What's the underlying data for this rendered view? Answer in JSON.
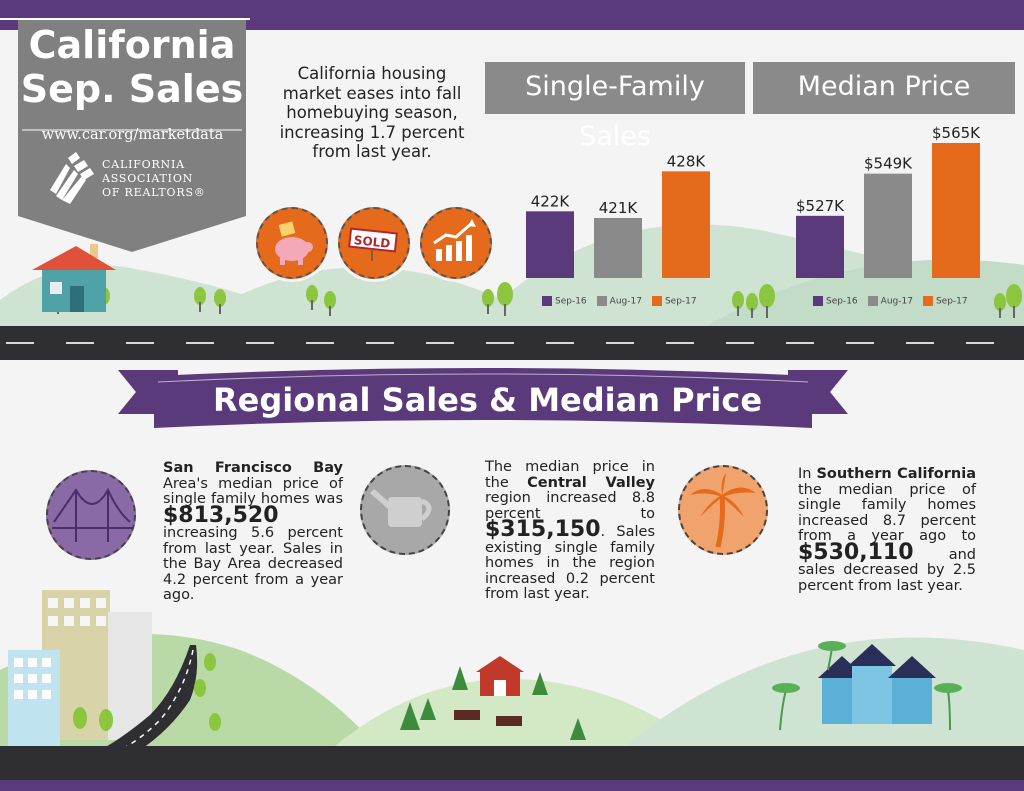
{
  "header": {
    "title_line1": "California",
    "title_line2": "Sep. Sales",
    "url": "www.car.org/marketdata",
    "org_line1": "CALIFORNIA",
    "org_line2": "ASSOCIATION",
    "org_line3": "OF REALTORS®"
  },
  "intro_text": "California housing market eases into fall homebuying season, increasing 1.7 percent from last year.",
  "icons": [
    "piggy-bank-icon",
    "sold-sign-icon",
    "growth-chart-icon"
  ],
  "sold_sign_label": "SOLD",
  "colors": {
    "purple": "#5a3a7a",
    "gray": "#8a8a8a",
    "orange": "#e56a1b",
    "hill": "#cfe3d3",
    "road": "#2f2f33"
  },
  "chart_data": [
    {
      "type": "bar",
      "title": "Single-Family Sales",
      "categories": [
        "Sep-16",
        "Aug-17",
        "Sep-17"
      ],
      "values": [
        422,
        421,
        428
      ],
      "labels": [
        "422K",
        "421K",
        "428K"
      ],
      "legend": [
        "Sep-16",
        "Aug-17",
        "Sep-17"
      ]
    },
    {
      "type": "bar",
      "title": "Median Price",
      "categories": [
        "Sep-16",
        "Aug-17",
        "Sep-17"
      ],
      "values": [
        527,
        549,
        565
      ],
      "labels": [
        "$527K",
        "$549K",
        "$565K"
      ],
      "legend": [
        "Sep-16",
        "Aug-17",
        "Sep-17"
      ]
    }
  ],
  "regional": {
    "title": "Regional Sales & Median Price",
    "bay": {
      "name": "San Francisco Bay",
      "text1": "Area's median price of single family homes was",
      "price": "$813,520",
      "text2": "increasing 5.6 percent from last year. Sales in the Bay Area decreased 4.2 percent from a year ago."
    },
    "central": {
      "text1": "The median price in the",
      "name": "Central Valley",
      "text2": "region increased 8.8 percent to",
      "price": "$315,150",
      "text3": ". Sales existing single family homes in the region increased 0.2 percent from last year."
    },
    "southern": {
      "text1": "In",
      "name": "Southern California",
      "text2": "the median price of single family homes increased 8.7 percent from a year ago to",
      "price": "$530,110",
      "text3": "and sales decreased by 2.5 percent from last year."
    }
  }
}
